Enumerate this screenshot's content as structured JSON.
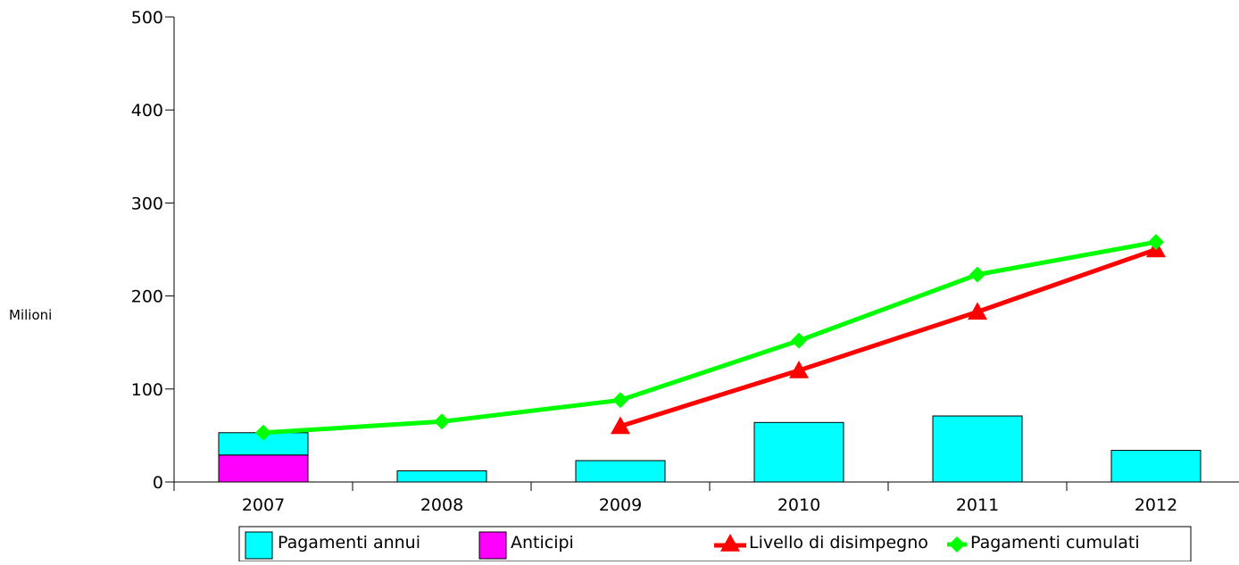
{
  "chart_data": {
    "type": "bar",
    "ylabel": "Milioni",
    "ylim": [
      0,
      500
    ],
    "yticks": [
      0,
      100,
      200,
      300,
      400,
      500
    ],
    "grid": false,
    "legend_position": "bottom",
    "categories": [
      "2007",
      "2008",
      "2009",
      "2010",
      "2011",
      "2012"
    ],
    "bar_series": [
      {
        "name": "Pagamenti annui",
        "color": "#00ffff",
        "values": [
          24,
          12,
          23,
          64,
          71,
          34
        ]
      },
      {
        "name": "Anticipi",
        "color": "#ff00ff",
        "values": [
          29,
          0,
          0,
          0,
          0,
          0
        ]
      }
    ],
    "line_series": [
      {
        "name": "Livello di disimpegno",
        "color": "#ff0000",
        "marker": "triangle",
        "values": [
          null,
          null,
          60,
          120,
          183,
          250
        ]
      },
      {
        "name": "Pagamenti cumulati",
        "color": "#00ff00",
        "marker": "diamond",
        "values": [
          53,
          65,
          88,
          152,
          223,
          258
        ]
      }
    ]
  }
}
